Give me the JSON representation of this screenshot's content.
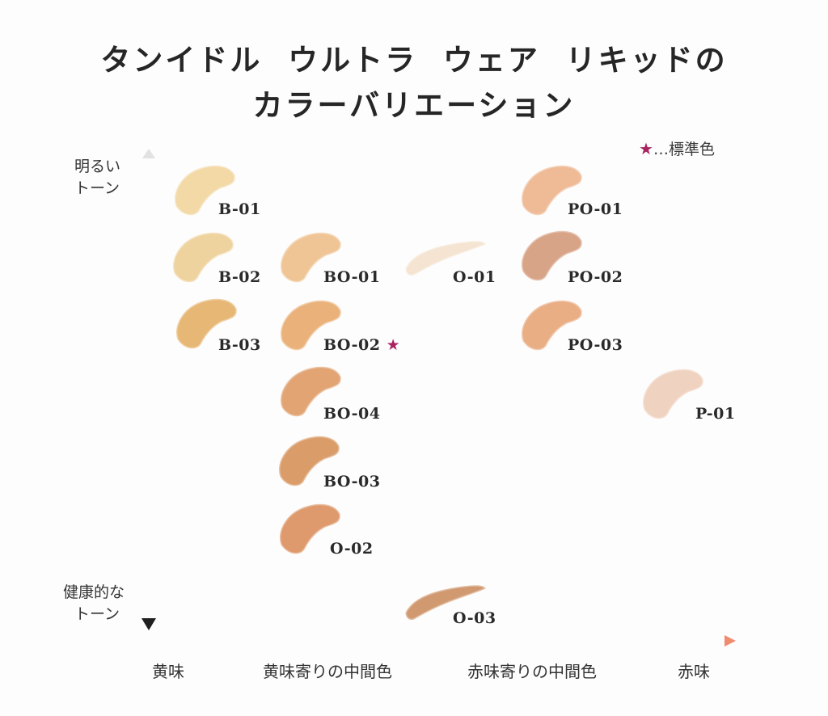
{
  "title": {
    "line1": "タンイドル  ウルトラ  ウェア  リキッドの",
    "line2": "カラーバリエーション"
  },
  "legend": {
    "star": "★",
    "text": "…標準色",
    "star_color": "#a8235f"
  },
  "y_axis": {
    "top_label_line1": "明るい",
    "top_label_line2": "トーン",
    "bottom_label_line1": "健康的な",
    "bottom_label_line2": "トーン"
  },
  "x_axis": {
    "labels": [
      "黄味",
      "黄味寄りの中間色",
      "赤味寄りの中間色",
      "赤味"
    ],
    "gradient_start": "#f7dc8a",
    "gradient_end": "#ef8c6f"
  },
  "shades": [
    {
      "code": "B-01",
      "color": "#f3d8a2",
      "standard": false
    },
    {
      "code": "B-02",
      "color": "#efd19a",
      "standard": false
    },
    {
      "code": "B-03",
      "color": "#e6b46e",
      "standard": false
    },
    {
      "code": "BO-01",
      "color": "#f0c391",
      "standard": false
    },
    {
      "code": "BO-02",
      "color": "#e9ae74",
      "standard": true
    },
    {
      "code": "BO-04",
      "color": "#e1a06c",
      "standard": false
    },
    {
      "code": "BO-03",
      "color": "#d99863",
      "standard": false
    },
    {
      "code": "O-02",
      "color": "#dd9465",
      "standard": false
    },
    {
      "code": "O-01",
      "color": "#f4e3cf",
      "standard": false
    },
    {
      "code": "O-03",
      "color": "#cf9468",
      "standard": false
    },
    {
      "code": "PO-01",
      "color": "#efb892",
      "standard": false
    },
    {
      "code": "PO-02",
      "color": "#d7a081",
      "standard": false
    },
    {
      "code": "PO-03",
      "color": "#e9aa7f",
      "standard": false
    },
    {
      "code": "P-01",
      "color": "#f0d0bd",
      "standard": false
    }
  ]
}
